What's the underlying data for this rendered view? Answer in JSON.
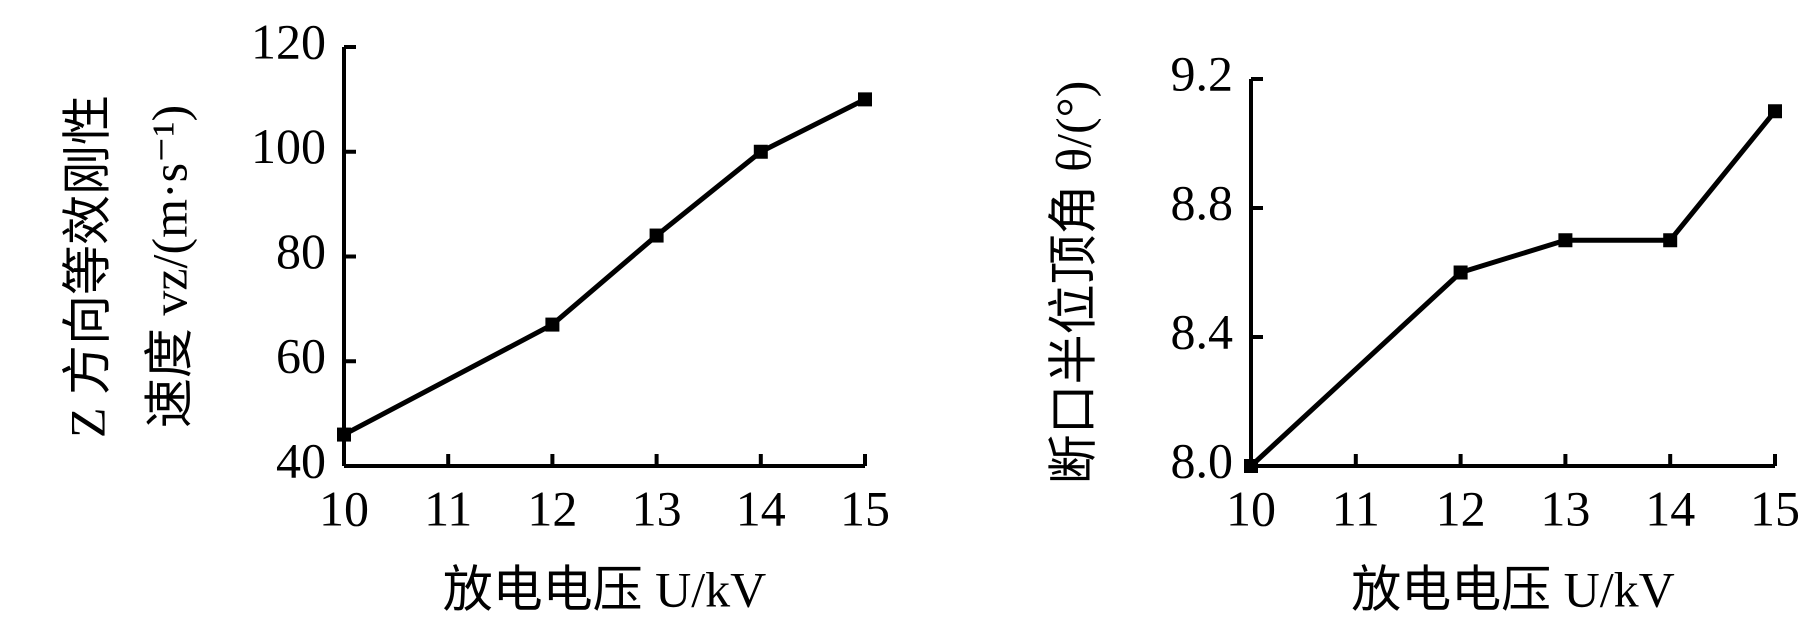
{
  "chart_data": [
    {
      "type": "line",
      "xlabel": "放电电压 U/kV",
      "ylabel": [
        "Z 方向等效刚性",
        "速度 vz/(m·s⁻¹)"
      ],
      "x": [
        10,
        12,
        13,
        14,
        15
      ],
      "series": [
        {
          "color": "#000000",
          "values": [
            46,
            67,
            84,
            100,
            110
          ]
        }
      ],
      "xlim": [
        10,
        15
      ],
      "xticks": [
        10,
        11,
        12,
        13,
        14,
        15
      ],
      "ylim": [
        40,
        120
      ],
      "yticks": [
        40,
        60,
        80,
        100,
        120
      ]
    },
    {
      "type": "line",
      "xlabel": "放电电压 U/kV",
      "ylabel": [
        "断口半位顶角 θ/(°)"
      ],
      "x": [
        10,
        12,
        13,
        14,
        15
      ],
      "series": [
        {
          "color": "#000000",
          "values": [
            8.0,
            8.6,
            8.7,
            8.7,
            9.1
          ]
        }
      ],
      "xlim": [
        10,
        15
      ],
      "xticks": [
        10,
        11,
        12,
        13,
        14,
        15
      ],
      "ylim": [
        8.0,
        9.2
      ],
      "yticks": [
        {
          "value": 8,
          "label": "8.0"
        },
        8.4,
        8.8,
        9.2
      ]
    }
  ]
}
